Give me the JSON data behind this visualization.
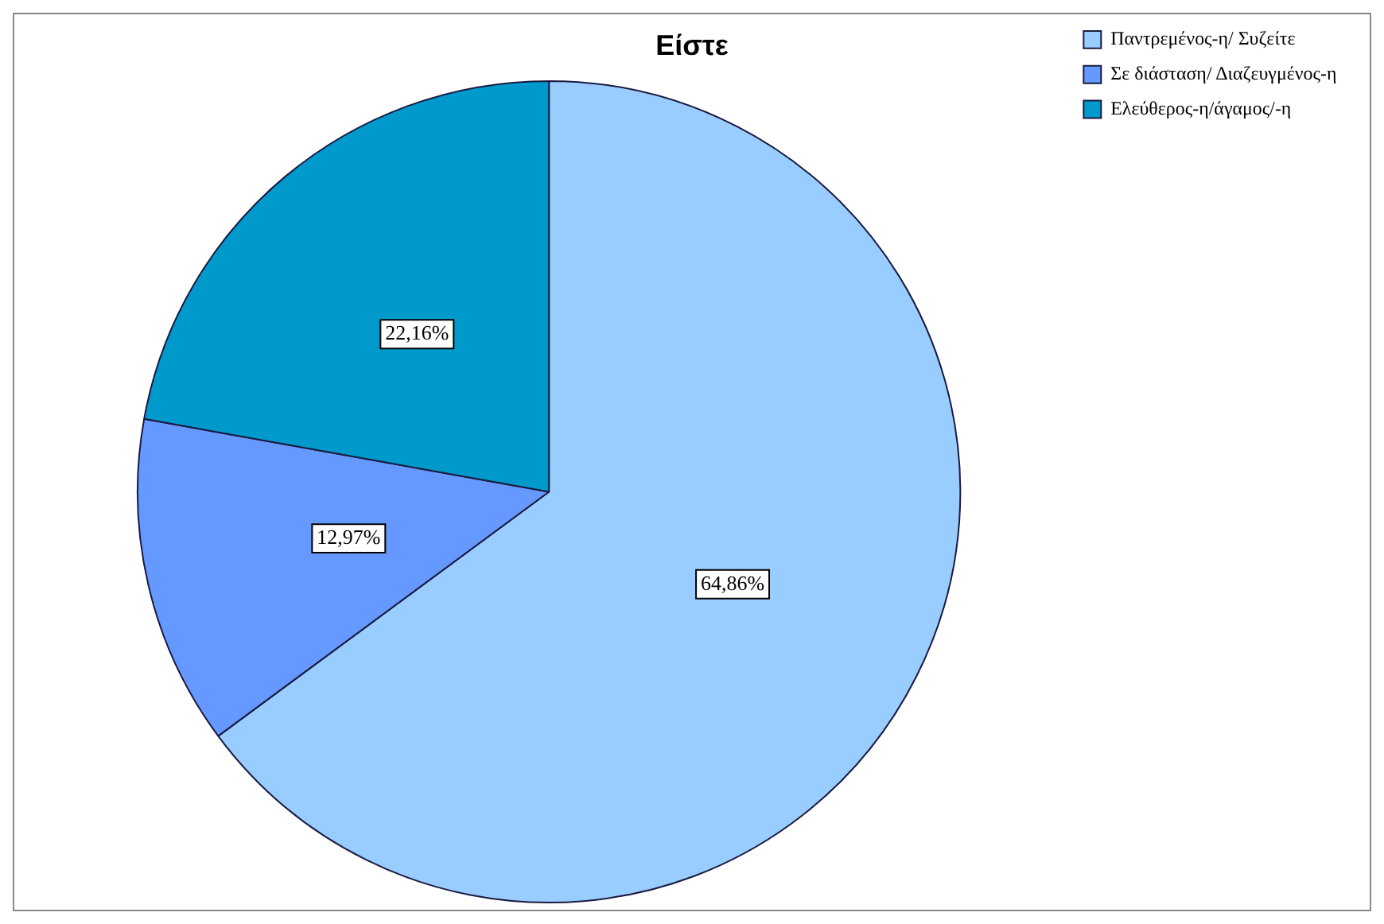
{
  "chart_data": {
    "type": "pie",
    "title": "Είστε",
    "categories": [
      "Παντρεμένος-η/ Συζείτε",
      "Σε διάσταση/ Διαζευγμένος-η",
      "Ελεύθερος-η/άγαμος/-η"
    ],
    "values": [
      64.86,
      12.97,
      22.16
    ],
    "colors": [
      "#99ccff",
      "#6699ff",
      "#0099cc"
    ],
    "value_labels": [
      "64,86%",
      "12,97%",
      "22,16%"
    ],
    "legend": "top right"
  }
}
